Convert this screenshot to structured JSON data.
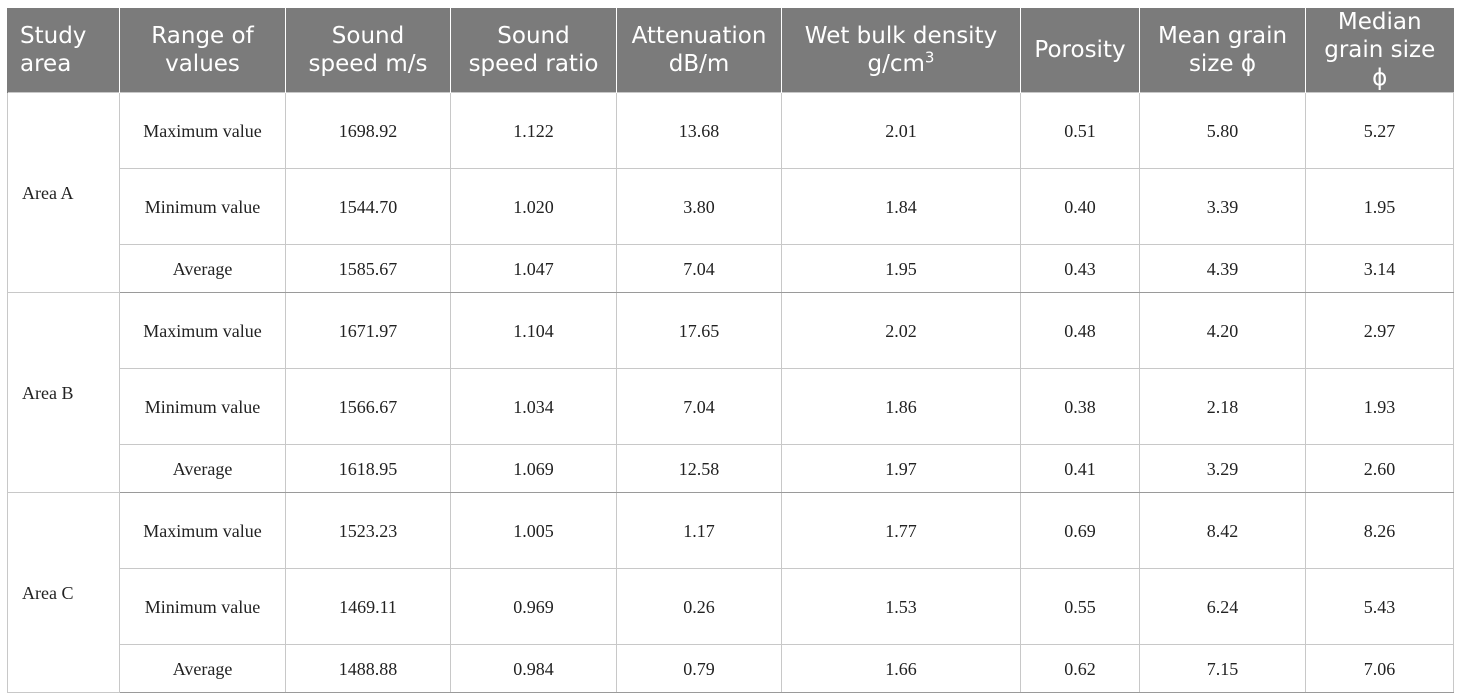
{
  "columns": [
    {
      "label": "Study area"
    },
    {
      "label": "Range of values"
    },
    {
      "label": "Sound speed m/s"
    },
    {
      "label": "Sound speed ratio"
    },
    {
      "label": "Attenuation dB/m"
    },
    {
      "label": "Wet bulk density g/cm",
      "sup": "3"
    },
    {
      "label": "Porosity"
    },
    {
      "label": "Mean grain size ϕ"
    },
    {
      "label": "Median grain size ϕ"
    }
  ],
  "areas": [
    {
      "name": "Area A",
      "rows": [
        {
          "range": "Maximum value",
          "values": [
            "1698.92",
            "1.122",
            "13.68",
            "2.01",
            "0.51",
            "5.80",
            "5.27"
          ]
        },
        {
          "range": "Minimum value",
          "values": [
            "1544.70",
            "1.020",
            "3.80",
            "1.84",
            "0.40",
            "3.39",
            "1.95"
          ]
        },
        {
          "range": "Average",
          "values": [
            "1585.67",
            "1.047",
            "7.04",
            "1.95",
            "0.43",
            "4.39",
            "3.14"
          ]
        }
      ]
    },
    {
      "name": "Area B",
      "rows": [
        {
          "range": "Maximum value",
          "values": [
            "1671.97",
            "1.104",
            "17.65",
            "2.02",
            "0.48",
            "4.20",
            "2.97"
          ]
        },
        {
          "range": "Minimum value",
          "values": [
            "1566.67",
            "1.034",
            "7.04",
            "1.86",
            "0.38",
            "2.18",
            "1.93"
          ]
        },
        {
          "range": "Average",
          "values": [
            "1618.95",
            "1.069",
            "12.58",
            "1.97",
            "0.41",
            "3.29",
            "2.60"
          ]
        }
      ]
    },
    {
      "name": "Area C",
      "rows": [
        {
          "range": "Maximum value",
          "values": [
            "1523.23",
            "1.005",
            "1.17",
            "1.77",
            "0.69",
            "8.42",
            "8.26"
          ]
        },
        {
          "range": "Minimum value",
          "values": [
            "1469.11",
            "0.969",
            "0.26",
            "1.53",
            "0.55",
            "6.24",
            "5.43"
          ]
        },
        {
          "range": "Average",
          "values": [
            "1488.88",
            "0.984",
            "0.79",
            "1.66",
            "0.62",
            "7.15",
            "7.06"
          ]
        }
      ]
    }
  ]
}
